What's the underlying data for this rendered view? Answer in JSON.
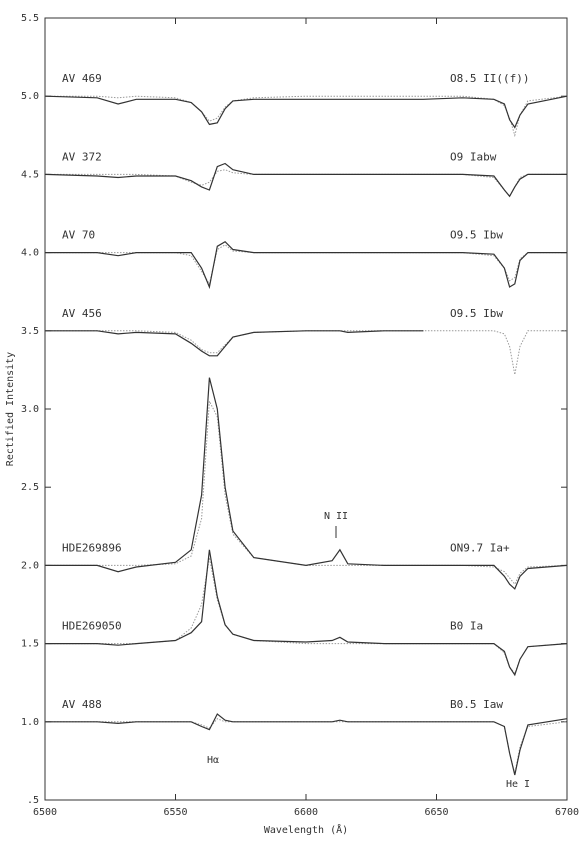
{
  "chart_data": {
    "type": "line",
    "x_label": "Wavelength (Å)",
    "y_label": "Rectified Intensity",
    "xlim": [
      6500,
      6700
    ],
    "xticks": [
      6500,
      6550,
      6600,
      6650,
      6700
    ],
    "ylim": [
      0.5,
      5.5
    ],
    "yticks": [
      {
        "value": 0.5,
        "label": ".5"
      },
      {
        "value": 1,
        "label": "1.0"
      },
      1.5,
      {
        "value": 2,
        "label": "2.0"
      },
      2.5,
      {
        "value": 3,
        "label": "3.0"
      },
      3.5,
      {
        "value": 4,
        "label": "4.0"
      },
      4.5,
      {
        "value": 5,
        "label": "5.0"
      },
      5.5
    ],
    "color": "#333333",
    "model_color": "#999999",
    "x": [
      6500,
      6520,
      6528,
      6535,
      6550,
      6556,
      6560,
      6563,
      6566,
      6569,
      6572,
      6580,
      6600,
      6610,
      6613,
      6616,
      6630,
      6645,
      6660,
      6672,
      6676,
      6678,
      6680,
      6682,
      6685,
      6700
    ],
    "series": [
      {
        "name": "AV 469",
        "label": "O8.5 II((f))",
        "values": [
          5.0,
          4.99,
          4.95,
          4.98,
          4.98,
          4.96,
          4.9,
          4.82,
          4.83,
          4.92,
          4.97,
          4.98,
          4.98,
          4.98,
          4.98,
          4.98,
          4.98,
          4.98,
          4.99,
          4.98,
          4.95,
          4.85,
          4.8,
          4.88,
          4.95,
          5.0
        ],
        "model": [
          5.0,
          5.0,
          4.99,
          5.0,
          4.99,
          4.96,
          4.9,
          4.84,
          4.86,
          4.93,
          4.97,
          4.99,
          5.0,
          5.0,
          5.0,
          5.0,
          5.0,
          5.0,
          5.0,
          4.98,
          4.94,
          4.86,
          4.75,
          4.88,
          4.97,
          5.0
        ]
      },
      {
        "name": "AV 372",
        "label": "O9 Iabw",
        "values": [
          4.5,
          4.49,
          4.48,
          4.49,
          4.49,
          4.46,
          4.42,
          4.4,
          4.55,
          4.57,
          4.53,
          4.5,
          4.5,
          4.5,
          4.5,
          4.5,
          4.5,
          4.5,
          4.5,
          4.49,
          4.4,
          4.36,
          4.42,
          4.47,
          4.5,
          4.5
        ],
        "model": [
          4.5,
          4.5,
          4.5,
          4.5,
          4.49,
          4.45,
          4.43,
          4.45,
          4.52,
          4.53,
          4.51,
          4.5,
          4.5,
          4.5,
          4.5,
          4.5,
          4.5,
          4.5,
          4.5,
          4.48,
          4.4,
          4.36,
          4.42,
          4.48,
          4.5,
          4.5
        ]
      },
      {
        "name": "AV 70",
        "label": "O9.5 Ibw",
        "values": [
          4.0,
          4.0,
          3.98,
          4.0,
          4.0,
          4.0,
          3.9,
          3.78,
          4.04,
          4.07,
          4.02,
          4.0,
          4.0,
          4.0,
          4.0,
          4.0,
          4.0,
          4.0,
          4.0,
          3.99,
          3.9,
          3.78,
          3.8,
          3.95,
          4.0,
          4.0
        ],
        "model": [
          4.0,
          4.0,
          4.0,
          4.0,
          4.0,
          3.98,
          3.88,
          3.8,
          4.02,
          4.05,
          4.01,
          4.0,
          4.0,
          4.0,
          4.0,
          4.0,
          4.0,
          4.0,
          4.0,
          3.98,
          3.9,
          3.82,
          3.84,
          3.96,
          4.0,
          4.0
        ]
      },
      {
        "name": "AV 456",
        "label": "O9.5 Ibw",
        "values": [
          3.5,
          3.5,
          3.48,
          3.49,
          3.48,
          3.42,
          3.37,
          3.34,
          3.34,
          3.4,
          3.46,
          3.49,
          3.5,
          3.5,
          3.5,
          3.49,
          3.5,
          3.5,
          null,
          null,
          null,
          null,
          null,
          null,
          null,
          null
        ],
        "model": [
          3.5,
          3.5,
          3.5,
          3.5,
          3.49,
          3.44,
          3.38,
          3.36,
          3.36,
          3.41,
          3.46,
          3.49,
          3.5,
          3.5,
          3.5,
          3.5,
          3.5,
          3.5,
          3.5,
          3.5,
          3.48,
          3.4,
          3.22,
          3.4,
          3.5,
          3.5
        ]
      },
      {
        "name": "HDE269896",
        "label": "ON9.7 Ia+",
        "values": [
          2.0,
          2.0,
          1.96,
          1.99,
          2.02,
          2.1,
          2.45,
          3.2,
          3.0,
          2.5,
          2.22,
          2.05,
          2.0,
          2.03,
          2.1,
          2.01,
          2.0,
          2.0,
          2.0,
          2.0,
          1.93,
          1.88,
          1.85,
          1.93,
          1.98,
          2.0
        ],
        "model": [
          2.0,
          2.0,
          2.0,
          2.0,
          2.01,
          2.06,
          2.3,
          3.05,
          2.95,
          2.45,
          2.2,
          2.05,
          2.0,
          2.0,
          2.0,
          2.0,
          2.0,
          2.0,
          2.0,
          1.99,
          1.96,
          1.92,
          1.88,
          1.95,
          1.99,
          2.0
        ]
      },
      {
        "name": "HDE269050",
        "label": "B0 Ia",
        "values": [
          1.5,
          1.5,
          1.49,
          1.5,
          1.52,
          1.57,
          1.64,
          2.1,
          1.8,
          1.62,
          1.56,
          1.52,
          1.51,
          1.52,
          1.54,
          1.51,
          1.5,
          1.5,
          1.5,
          1.5,
          1.45,
          1.35,
          1.3,
          1.4,
          1.48,
          1.5
        ],
        "model": [
          1.5,
          1.5,
          1.5,
          1.5,
          1.52,
          1.6,
          1.75,
          2.05,
          1.78,
          1.62,
          1.56,
          1.52,
          1.5,
          1.5,
          1.5,
          1.5,
          1.5,
          1.5,
          1.5,
          1.5,
          1.44,
          1.35,
          1.31,
          1.4,
          1.48,
          1.5
        ]
      },
      {
        "name": "AV 488",
        "label": "B0.5 Iaw",
        "values": [
          1.0,
          1.0,
          0.99,
          1.0,
          1.0,
          1.0,
          0.97,
          0.95,
          1.05,
          1.01,
          1.0,
          1.0,
          1.0,
          1.0,
          1.01,
          1.0,
          1.0,
          1.0,
          1.0,
          1.0,
          0.97,
          0.8,
          0.66,
          0.82,
          0.98,
          1.02
        ],
        "model": [
          1.0,
          1.0,
          1.0,
          1.0,
          1.0,
          1.0,
          0.98,
          0.96,
          1.02,
          1.0,
          1.0,
          1.0,
          1.0,
          1.0,
          1.0,
          1.0,
          1.0,
          1.0,
          1.0,
          1.0,
          0.97,
          0.8,
          0.67,
          0.84,
          0.97,
          1.0
        ]
      }
    ],
    "annotations": [
      "N II",
      "Hα",
      "He I"
    ]
  }
}
